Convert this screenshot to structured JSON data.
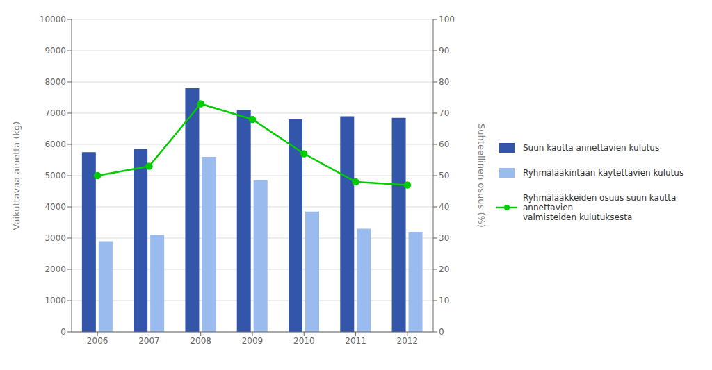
{
  "chart_data": {
    "type": "bar",
    "categories": [
      "2006",
      "2007",
      "2008",
      "2009",
      "2010",
      "2011",
      "2012"
    ],
    "series": [
      {
        "name": "Suun kautta annettavien kulutus",
        "color": "#3355AA",
        "values": [
          5750,
          5850,
          7800,
          7100,
          6800,
          6900,
          6850
        ]
      },
      {
        "name": "Ryhmälääkintään käytettävien kulutus",
        "color": "#99BBEE",
        "values": [
          2900,
          3100,
          5600,
          4850,
          3850,
          3300,
          3200
        ]
      },
      {
        "name": "Ryhmälääkkeiden osuus suun kautta annettavien\nvalmisteiden kulutuksesta",
        "color": "#00CC00",
        "values": [
          50,
          53,
          73,
          68,
          57,
          48,
          47
        ],
        "axis": "y2",
        "type": "line",
        "marker": "circle"
      }
    ],
    "ylabel": "Vaikuttavaa ainetta (kg)",
    "y2label": "Suhteellinen osuus (%)",
    "ylim": [
      0,
      10000
    ],
    "yticks": [
      0,
      1000,
      2000,
      3000,
      4000,
      5000,
      6000,
      7000,
      8000,
      9000,
      10000
    ],
    "y2lim": [
      0,
      100
    ],
    "y2ticks": [
      0,
      10,
      20,
      30,
      40,
      50,
      60,
      70,
      80,
      90,
      100
    ],
    "grid": true,
    "legend": "right"
  }
}
